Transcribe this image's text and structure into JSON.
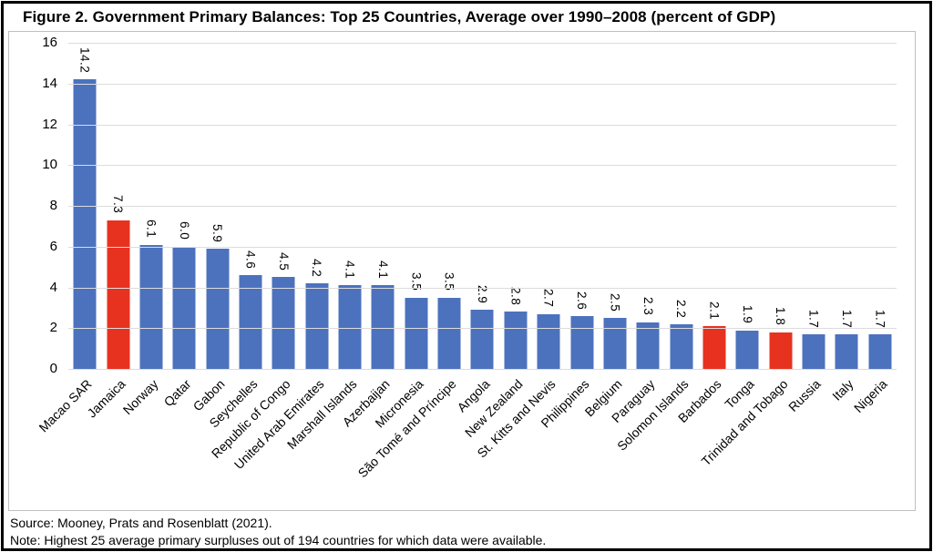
{
  "figure": {
    "title": "Figure 2. Government Primary Balances: Top 25 Countries, Average over 1990–2008 (percent of GDP)"
  },
  "footer": {
    "source": "Source: Mooney, Prats and Rosenblatt (2021).",
    "note": "Note: Highest 25 average primary surpluses out of 194 countries for which data were available."
  },
  "chart_data": {
    "type": "bar",
    "title": "Figure 2. Government Primary Balances: Top 25 Countries, Average over 1990–2008 (percent of GDP)",
    "categories": [
      "Macao SAR",
      "Jamaica",
      "Norway",
      "Qatar",
      "Gabon",
      "Seychelles",
      "Republic of Congo",
      "United Arab Emirates",
      "Marshall Islands",
      "Azerbaijan",
      "Micronesia",
      "São Tomé and Príncipe",
      "Angola",
      "New Zealand",
      "St. Kitts and Nevis",
      "Philippines",
      "Belgium",
      "Paraguay",
      "Solomon Islands",
      "Barbados",
      "Tonga",
      "Trinidad and Tobago",
      "Russia",
      "Italy",
      "Nigeria"
    ],
    "values": [
      14.2,
      7.3,
      6.1,
      6.0,
      5.9,
      4.6,
      4.5,
      4.2,
      4.1,
      4.1,
      3.5,
      3.5,
      2.9,
      2.8,
      2.7,
      2.6,
      2.5,
      2.3,
      2.2,
      2.1,
      1.9,
      1.8,
      1.7,
      1.7,
      1.7
    ],
    "highlighted_categories": [
      "Jamaica",
      "Barbados",
      "Trinidad and Tobago"
    ],
    "highlight_indices": [
      1,
      19,
      21
    ],
    "xlabel": "",
    "ylabel": "",
    "ylim": [
      0,
      16
    ],
    "yticks": [
      0,
      2,
      4,
      6,
      8,
      10,
      12,
      14,
      16
    ],
    "grid": true,
    "legend": "none",
    "data_label_format": "one-decimal, rotated 90° clockwise above bars",
    "x_label_rotation_deg": 45,
    "colors": {
      "bar": "#4c72be",
      "highlight": "#e7321f",
      "gridline": "#dcdcdc",
      "plot_border": "#c0c0c0",
      "text": "#000000"
    }
  }
}
